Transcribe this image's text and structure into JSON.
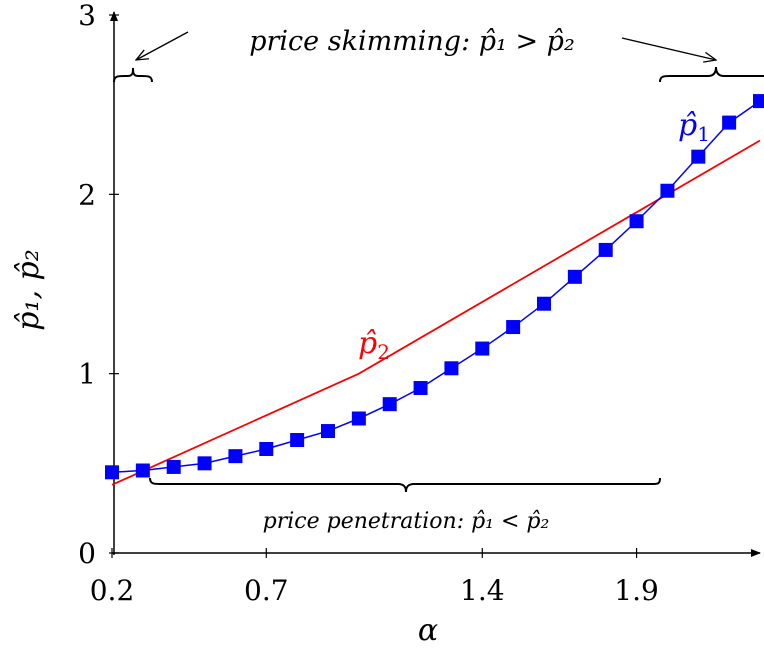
{
  "chart_data": {
    "type": "line",
    "xlabel": "α",
    "ylabel": "p̂₁, p̂₂",
    "xlim": [
      0.2,
      2.3
    ],
    "ylim": [
      0,
      3
    ],
    "x_ticks": [
      "0.2",
      "0.7",
      "1.4",
      "1.9"
    ],
    "y_ticks": [
      "0",
      "1",
      "2",
      "3"
    ],
    "grid": false,
    "series": [
      {
        "name": "p̂₁",
        "color": "#0000ff",
        "marker": "square",
        "x": [
          0.2,
          0.3,
          0.4,
          0.5,
          0.6,
          0.7,
          0.8,
          0.9,
          1.0,
          1.1,
          1.2,
          1.3,
          1.4,
          1.5,
          1.6,
          1.7,
          1.8,
          1.9,
          2.0,
          2.1,
          2.2,
          2.3
        ],
        "y": [
          0.45,
          0.46,
          0.48,
          0.5,
          0.54,
          0.58,
          0.63,
          0.68,
          0.75,
          0.83,
          0.92,
          1.03,
          1.14,
          1.26,
          1.39,
          1.54,
          1.69,
          1.85,
          2.02,
          2.21,
          2.4,
          2.52
        ]
      },
      {
        "name": "p̂₂",
        "color": "#ff0000",
        "marker": "none",
        "x": [
          0.2,
          1.0,
          2.3
        ],
        "y": [
          0.38,
          1.0,
          2.3
        ]
      }
    ],
    "annotations": {
      "skimming": "price skimming: p̂₁ > p̂₂",
      "penetration": "price penetration: p̂₁ < p̂₂"
    }
  }
}
